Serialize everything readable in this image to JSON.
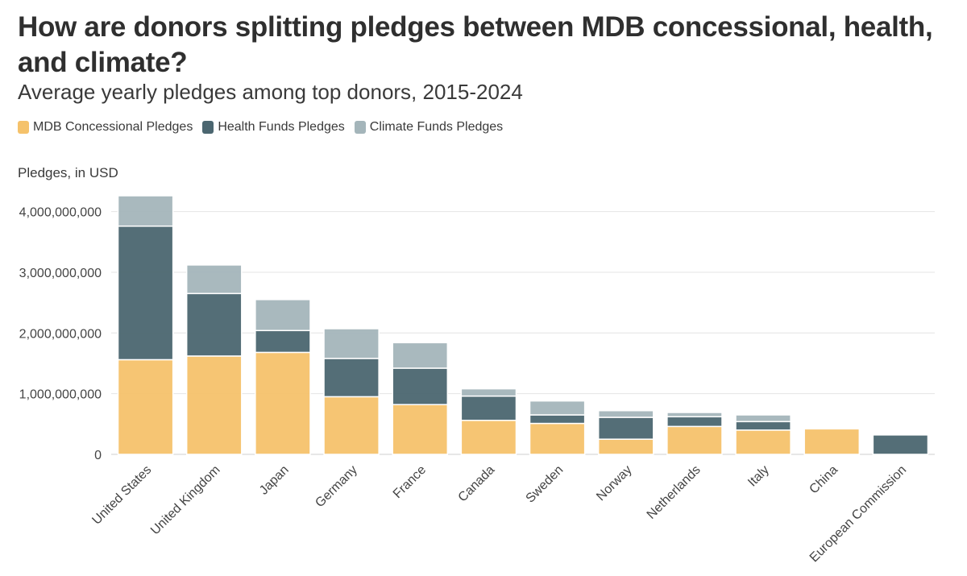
{
  "chart_data": {
    "type": "bar",
    "stacked": true,
    "title": "How are donors splitting pledges between MDB concessional, health, and climate?",
    "subtitle": "Average yearly pledges among top donors, 2015-2024",
    "ylabel": "Pledges, in USD",
    "xlabel": "",
    "ylim": [
      0,
      4300000000
    ],
    "yticks": [
      0,
      1000000000,
      2000000000,
      3000000000,
      4000000000
    ],
    "ytick_labels": [
      "0",
      "1,000,000,000",
      "2,000,000,000",
      "3,000,000,000",
      "4,000,000,000"
    ],
    "legend_position": "top-left",
    "grid": true,
    "categories": [
      "United States",
      "United Kingdom",
      "Japan",
      "Germany",
      "France",
      "Canada",
      "Sweden",
      "Norway",
      "Netherlands",
      "Italy",
      "China",
      "European Commission"
    ],
    "series": [
      {
        "name": "MDB Concessional Pledges",
        "color": "#f5c26b",
        "values": [
          1560000000,
          1620000000,
          1680000000,
          950000000,
          820000000,
          560000000,
          510000000,
          250000000,
          460000000,
          400000000,
          420000000,
          0
        ]
      },
      {
        "name": "Health Funds Pledges",
        "color": "#4b6670",
        "values": [
          2200000000,
          1030000000,
          360000000,
          630000000,
          600000000,
          400000000,
          140000000,
          360000000,
          160000000,
          140000000,
          0,
          320000000
        ]
      },
      {
        "name": "Climate Funds Pledges",
        "color": "#a4b5ba",
        "values": [
          500000000,
          470000000,
          510000000,
          490000000,
          420000000,
          120000000,
          230000000,
          110000000,
          70000000,
          110000000,
          0,
          0
        ]
      }
    ]
  }
}
